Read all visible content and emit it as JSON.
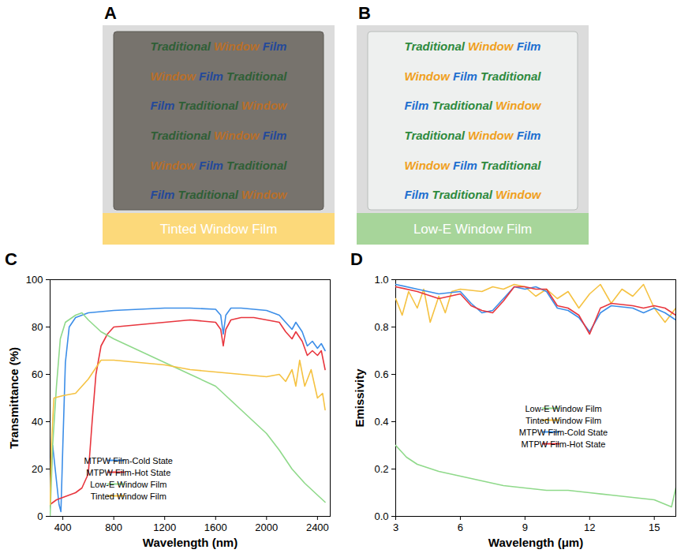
{
  "photos": [
    {
      "panel": "A",
      "caption": "Tinted Window Film",
      "rows": [
        [
          "Traditional",
          "Window",
          "Film"
        ],
        [
          "Window",
          "Film",
          "Traditional"
        ],
        [
          "Film",
          "Traditional",
          "Window"
        ],
        [
          "Traditional",
          "Window",
          "Film"
        ],
        [
          "Window",
          "Film",
          "Traditional"
        ],
        [
          "Film",
          "Traditional",
          "Window"
        ]
      ],
      "word_colors": {
        "Traditional": "#2f5f36",
        "Window": "#b86f2a",
        "Film": "#24499a"
      }
    },
    {
      "panel": "B",
      "caption": "Low-E Window Film",
      "rows": [
        [
          "Traditional",
          "Window",
          "Film"
        ],
        [
          "Window",
          "Film",
          "Traditional"
        ],
        [
          "Film",
          "Traditional",
          "Window"
        ],
        [
          "Traditional",
          "Window",
          "Film"
        ],
        [
          "Window",
          "Film",
          "Traditional"
        ],
        [
          "Film",
          "Traditional",
          "Window"
        ]
      ],
      "word_colors": {
        "Traditional": "#2e8a3e",
        "Window": "#f0a01e",
        "Film": "#1e6fd0"
      }
    }
  ],
  "chart_data": [
    {
      "panel": "C",
      "type": "line",
      "xlabel": "Wavelength (nm)",
      "ylabel": "Transmittance (%)",
      "xlim": [
        300,
        2500
      ],
      "xticks": [
        400,
        800,
        1200,
        1600,
        2000,
        2400
      ],
      "ylim": [
        0,
        100
      ],
      "yticks": [
        0,
        20,
        40,
        60,
        80,
        100
      ],
      "legend": "lower-center",
      "series": [
        {
          "name": "MTPW Film-Cold State",
          "color": "#3c8ee8",
          "x": [
            300,
            320,
            340,
            370,
            385,
            400,
            420,
            450,
            500,
            600,
            800,
            1000,
            1200,
            1400,
            1600,
            1640,
            1660,
            1680,
            1720,
            1800,
            1900,
            2000,
            2100,
            2150,
            2200,
            2230,
            2280,
            2320,
            2360,
            2400,
            2430,
            2460
          ],
          "values": [
            10,
            30,
            20,
            5,
            2,
            30,
            65,
            80,
            84,
            86,
            87,
            87.5,
            88,
            88,
            87.5,
            85,
            77,
            85,
            88,
            88,
            87.5,
            87,
            85,
            82,
            79,
            82,
            78,
            72,
            74,
            71,
            73,
            70
          ]
        },
        {
          "name": "MTPW Film-Hot State",
          "color": "#e8363e",
          "x": [
            300,
            350,
            400,
            500,
            550,
            600,
            630,
            660,
            700,
            750,
            800,
            1000,
            1200,
            1400,
            1600,
            1640,
            1660,
            1680,
            1720,
            1800,
            1900,
            2000,
            2100,
            2150,
            2200,
            2230,
            2280,
            2320,
            2360,
            2400,
            2430,
            2460
          ],
          "values": [
            5,
            7,
            8,
            10,
            12,
            18,
            40,
            60,
            72,
            77,
            80,
            81,
            82,
            83,
            82,
            79,
            72,
            79,
            83,
            84,
            84,
            83,
            82,
            78,
            75,
            78,
            74,
            68,
            70,
            68,
            70,
            62
          ]
        },
        {
          "name": "Low-E Window Film",
          "color": "#8fd98a",
          "x": [
            300,
            320,
            350,
            380,
            420,
            500,
            550,
            600,
            700,
            800,
            1000,
            1200,
            1400,
            1600,
            1700,
            1800,
            1900,
            2000,
            2100,
            2200,
            2300,
            2400,
            2460
          ],
          "values": [
            0,
            30,
            55,
            75,
            82,
            85,
            86,
            83,
            78,
            75,
            70,
            65,
            60,
            55,
            50,
            45,
            40,
            35,
            28,
            20,
            14,
            9,
            6
          ]
        },
        {
          "name": "Tinted Window Film",
          "color": "#f5c242",
          "x": [
            300,
            310,
            330,
            400,
            500,
            550,
            600,
            700,
            800,
            1000,
            1200,
            1400,
            1600,
            1800,
            2000,
            2100,
            2150,
            2200,
            2230,
            2260,
            2300,
            2350,
            2400,
            2440,
            2460
          ],
          "values": [
            5,
            30,
            50,
            51,
            52,
            55,
            58,
            66,
            66,
            65,
            64,
            62,
            61,
            60,
            59,
            60,
            57,
            62,
            55,
            66,
            55,
            62,
            50,
            52,
            45
          ]
        }
      ]
    },
    {
      "panel": "D",
      "type": "line",
      "xlabel": "Wavelength (μm)",
      "ylabel": "Emissivity",
      "xlim": [
        3,
        16
      ],
      "xticks": [
        3,
        6,
        9,
        12,
        15
      ],
      "ylim": [
        0,
        1
      ],
      "yticks": [
        {
          "value": 0,
          "label": "0.0"
        },
        0.2,
        0.4,
        0.6,
        0.8,
        {
          "value": 1,
          "label": "1.0"
        }
      ],
      "legend": "lower-right",
      "series": [
        {
          "name": "Low-E Window Film",
          "color": "#8fd98a",
          "x": [
            3,
            3.5,
            4,
            5,
            6,
            7,
            8,
            9,
            10,
            11,
            12,
            13,
            14,
            15,
            15.8,
            16
          ],
          "values": [
            0.3,
            0.25,
            0.22,
            0.19,
            0.17,
            0.15,
            0.13,
            0.12,
            0.11,
            0.11,
            0.1,
            0.09,
            0.08,
            0.07,
            0.04,
            0.12
          ]
        },
        {
          "name": "Tinted Window Film",
          "color": "#f5c242",
          "x": [
            3,
            3.3,
            3.6,
            4,
            4.3,
            4.6,
            5,
            5.3,
            5.6,
            6,
            7,
            7.5,
            8,
            8.5,
            9,
            9.5,
            10,
            10.5,
            11,
            11.5,
            12,
            12.5,
            13,
            13.5,
            14,
            14.5,
            15,
            15.5,
            16
          ],
          "values": [
            0.92,
            0.85,
            0.95,
            0.88,
            0.96,
            0.82,
            0.93,
            0.86,
            0.95,
            0.96,
            0.95,
            0.97,
            0.96,
            0.98,
            0.97,
            0.93,
            0.96,
            0.92,
            0.95,
            0.88,
            0.94,
            0.98,
            0.9,
            0.96,
            0.93,
            0.98,
            0.88,
            0.82,
            0.88
          ]
        },
        {
          "name": "MTPW Film-Cold State",
          "color": "#3c8ee8",
          "x": [
            3,
            4,
            5,
            6,
            6.5,
            7,
            7.5,
            8,
            8.5,
            9,
            9.5,
            10,
            10.5,
            11,
            11.5,
            12,
            12.5,
            13,
            14,
            14.5,
            15,
            15.5,
            16
          ],
          "values": [
            0.98,
            0.96,
            0.94,
            0.95,
            0.9,
            0.86,
            0.87,
            0.92,
            0.97,
            0.96,
            0.97,
            0.95,
            0.88,
            0.87,
            0.84,
            0.78,
            0.86,
            0.89,
            0.88,
            0.86,
            0.88,
            0.86,
            0.83
          ]
        },
        {
          "name": "MTPW Film-Hot State",
          "color": "#e8363e",
          "x": [
            3,
            4,
            5,
            6,
            6.5,
            7,
            7.5,
            8,
            8.5,
            9,
            9.5,
            10,
            10.5,
            11,
            11.5,
            12,
            12.5,
            13,
            14,
            14.5,
            15,
            15.5,
            16
          ],
          "values": [
            0.97,
            0.95,
            0.92,
            0.94,
            0.89,
            0.87,
            0.86,
            0.91,
            0.97,
            0.97,
            0.96,
            0.96,
            0.89,
            0.88,
            0.85,
            0.77,
            0.88,
            0.9,
            0.89,
            0.88,
            0.89,
            0.88,
            0.85
          ]
        }
      ]
    }
  ]
}
